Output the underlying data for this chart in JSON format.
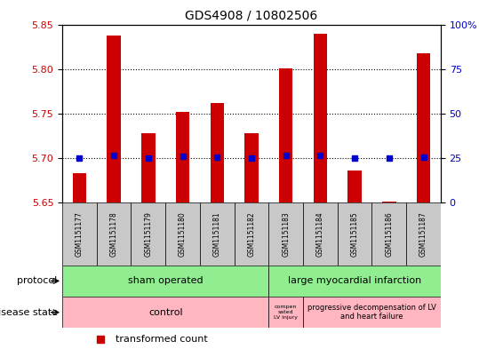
{
  "title": "GDS4908 / 10802506",
  "samples": [
    "GSM1151177",
    "GSM1151178",
    "GSM1151179",
    "GSM1151180",
    "GSM1151181",
    "GSM1151182",
    "GSM1151183",
    "GSM1151184",
    "GSM1151185",
    "GSM1151186",
    "GSM1151187"
  ],
  "transformed_counts": [
    5.683,
    5.838,
    5.728,
    5.752,
    5.762,
    5.728,
    5.801,
    5.84,
    5.686,
    5.651,
    5.818
  ],
  "percentile_values": [
    5.7,
    5.703,
    5.7,
    5.702,
    5.701,
    5.7,
    5.703,
    5.703,
    5.7,
    5.7,
    5.701
  ],
  "ylim_left": [
    5.65,
    5.85
  ],
  "ylim_right": [
    0,
    100
  ],
  "yticks_left": [
    5.65,
    5.7,
    5.75,
    5.8,
    5.85
  ],
  "yticks_right": [
    0,
    25,
    50,
    75,
    100
  ],
  "ytick_labels_right": [
    "0",
    "25",
    "50",
    "75",
    "100%"
  ],
  "bar_color": "#CC0000",
  "dot_color": "#0000CC",
  "bar_bottom": 5.65,
  "sham_n": 6,
  "protocol_color": "#90EE90",
  "disease_color": "#FFB6C1",
  "bg_sample_color": "#C8C8C8",
  "grid_color": "black",
  "left_tick_color": "#CC0000",
  "right_tick_color": "#0000CC"
}
